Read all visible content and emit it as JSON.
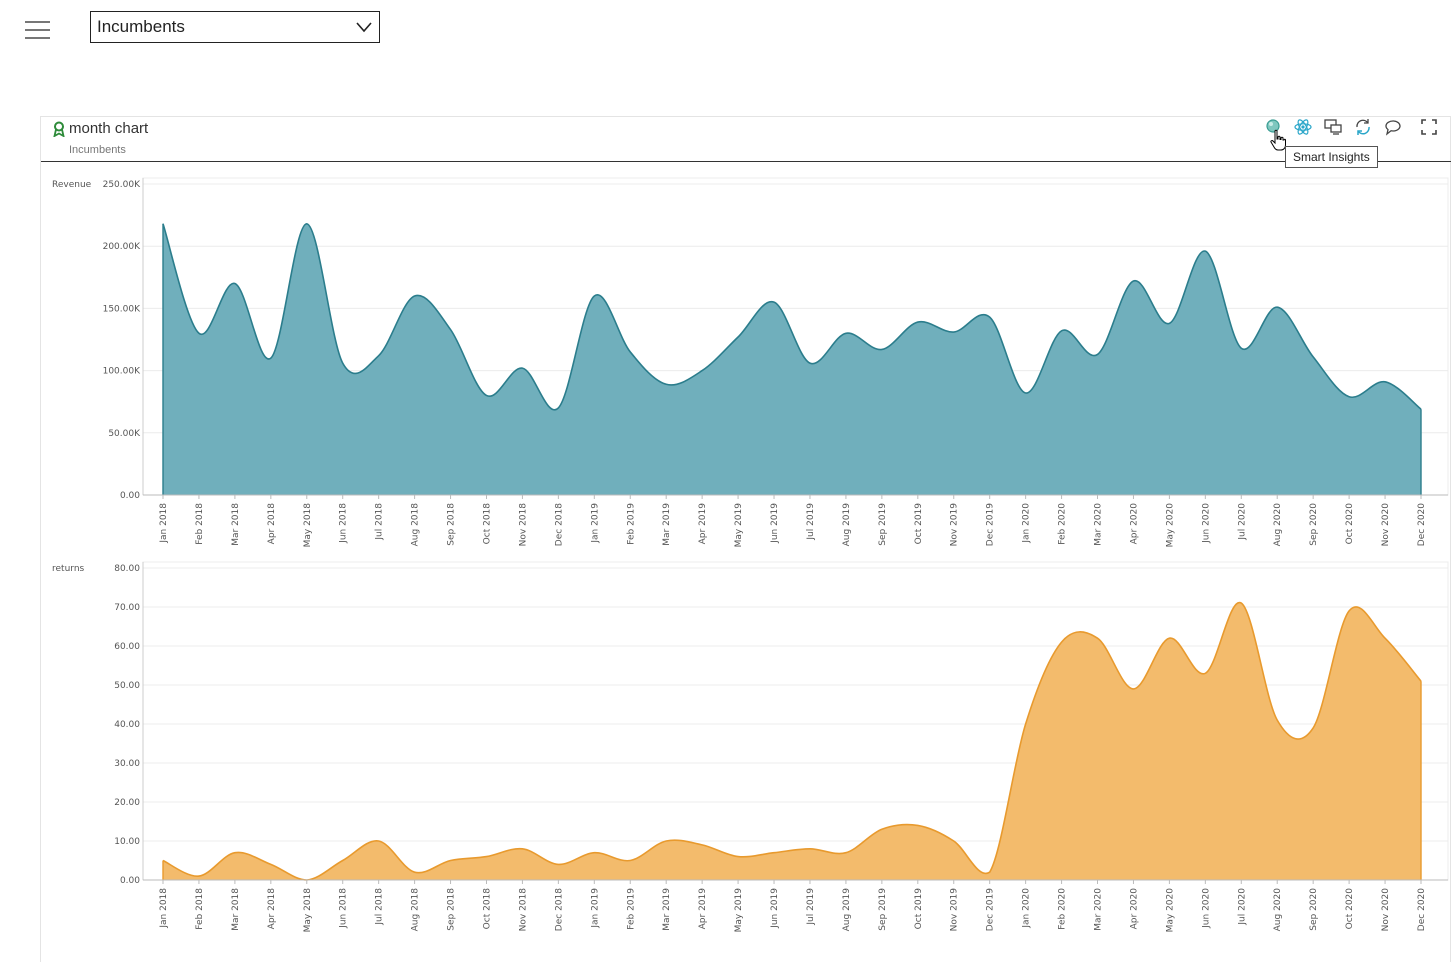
{
  "topbar": {
    "menu_icon": "hamburger-menu-icon",
    "dropdown": {
      "selected": "Incumbents",
      "chevron_icon": "chevron-down-icon"
    }
  },
  "card": {
    "title": "month chart",
    "subtitle": "Incumbents",
    "title_icon": "ribbon-award-icon",
    "toolbar": [
      {
        "name": "smart-insights-button",
        "icon": "smart-insights-icon"
      },
      {
        "name": "analytics-button",
        "icon": "atom-icon"
      },
      {
        "name": "present-button",
        "icon": "screen-icon"
      },
      {
        "name": "sync-button",
        "icon": "refresh-chat-icon"
      },
      {
        "name": "comments-button",
        "icon": "comment-icon"
      },
      {
        "name": "fullscreen-button",
        "icon": "fullscreen-icon"
      }
    ],
    "tooltip": "Smart Insights"
  },
  "chart_data": [
    {
      "type": "area",
      "ylabel": "Revenue",
      "ylim": [
        0,
        250000
      ],
      "yticks": [
        "0.00",
        "50.00K",
        "100.00K",
        "150.00K",
        "200.00K",
        "250.00K"
      ],
      "color": "#2b7d8c",
      "fill": "#70afbc",
      "grid": true,
      "categories": [
        "Jan 2018",
        "Feb 2018",
        "Mar 2018",
        "Apr 2018",
        "May 2018",
        "Jun 2018",
        "Jul 2018",
        "Aug 2018",
        "Sep 2018",
        "Oct 2018",
        "Nov 2018",
        "Dec 2018",
        "Jan 2019",
        "Feb 2019",
        "Mar 2019",
        "Apr 2019",
        "May 2019",
        "Jun 2019",
        "Jul 2019",
        "Aug 2019",
        "Sep 2019",
        "Oct 2019",
        "Nov 2019",
        "Dec 2019",
        "Jan 2020",
        "Feb 2020",
        "Mar 2020",
        "Apr 2020",
        "May 2020",
        "Jun 2020",
        "Jul 2020",
        "Aug 2020",
        "Sep 2020",
        "Oct 2020",
        "Nov 2020",
        "Dec 2020"
      ],
      "values": [
        218000,
        130000,
        170000,
        110000,
        218000,
        106000,
        112000,
        160000,
        133000,
        80000,
        102000,
        70000,
        160000,
        115000,
        89000,
        100000,
        127000,
        155000,
        106000,
        130000,
        117000,
        139000,
        131000,
        143000,
        82000,
        132000,
        113000,
        172000,
        138000,
        196000,
        118000,
        151000,
        111000,
        79000,
        91000,
        69000
      ]
    },
    {
      "type": "area",
      "ylabel": "returns",
      "ylim": [
        0,
        80
      ],
      "yticks": [
        "0.00",
        "10.00",
        "20.00",
        "30.00",
        "40.00",
        "50.00",
        "60.00",
        "70.00",
        "80.00"
      ],
      "color": "#e89a2e",
      "fill": "#f3bb6c",
      "grid": true,
      "categories": [
        "Jan 2018",
        "Feb 2018",
        "Mar 2018",
        "Apr 2018",
        "May 2018",
        "Jun 2018",
        "Jul 2018",
        "Aug 2018",
        "Sep 2018",
        "Oct 2018",
        "Nov 2018",
        "Dec 2018",
        "Jan 2019",
        "Feb 2019",
        "Mar 2019",
        "Apr 2019",
        "May 2019",
        "Jun 2019",
        "Jul 2019",
        "Aug 2019",
        "Sep 2019",
        "Oct 2019",
        "Nov 2019",
        "Dec 2019",
        "Jan 2020",
        "Feb 2020",
        "Mar 2020",
        "Apr 2020",
        "May 2020",
        "Jun 2020",
        "Jul 2020",
        "Aug 2020",
        "Sep 2020",
        "Oct 2020",
        "Nov 2020",
        "Dec 2020"
      ],
      "values": [
        5,
        1,
        7,
        4,
        0,
        5,
        10,
        2,
        5,
        6,
        8,
        4,
        7,
        5,
        10,
        9,
        6,
        7,
        8,
        7,
        13,
        14,
        10,
        2,
        40,
        61,
        62,
        49,
        62,
        53,
        71,
        41,
        39,
        69,
        62,
        51
      ]
    }
  ]
}
